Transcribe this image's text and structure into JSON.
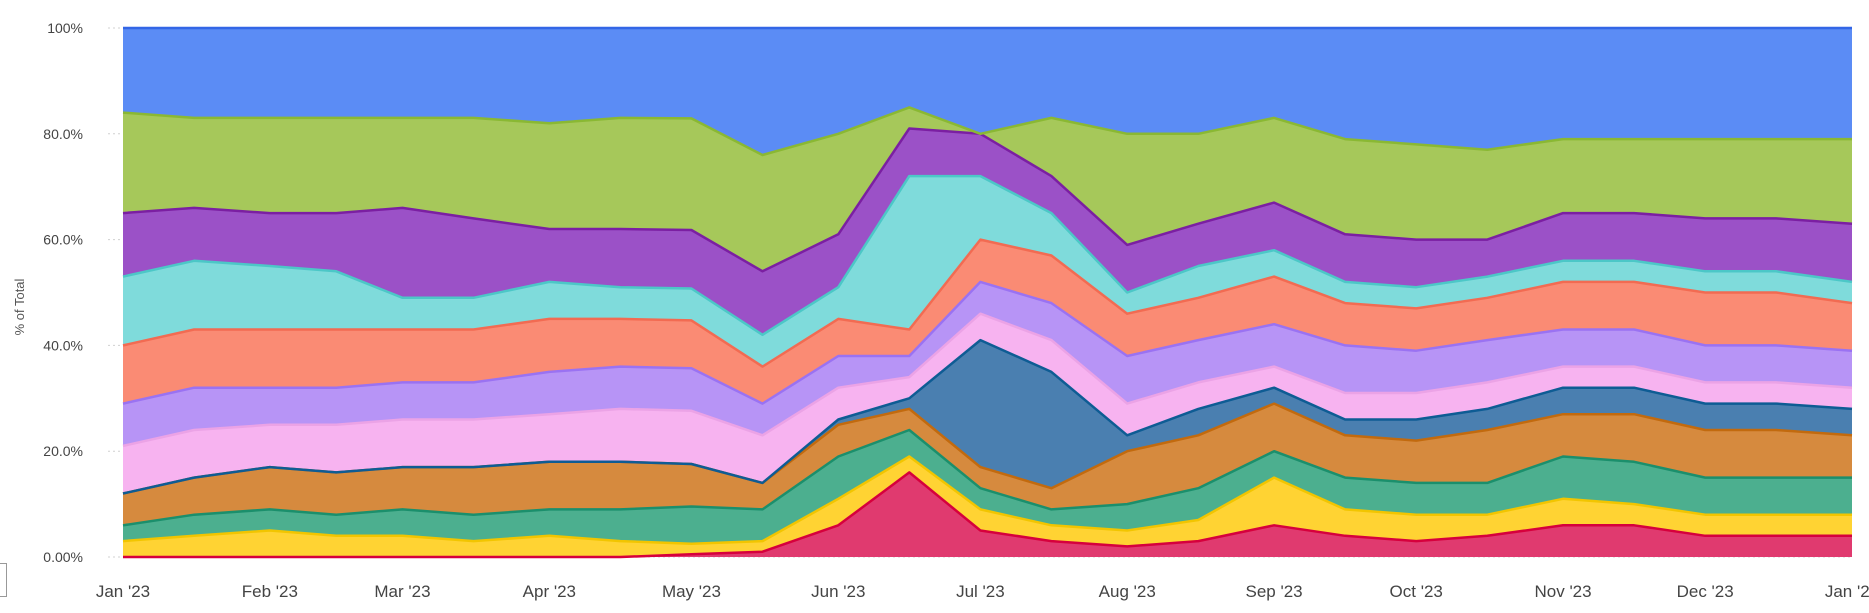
{
  "chart_data": {
    "type": "area",
    "stacked": "percent",
    "title": "",
    "xlabel": "",
    "ylabel": "% of Total",
    "ylim": [
      0,
      100
    ],
    "y_ticks": [
      "0.00%",
      "20.0%",
      "40.0%",
      "60.0%",
      "80.0%",
      "100%"
    ],
    "y_tick_values": [
      0,
      20,
      40,
      60,
      80,
      100
    ],
    "x_ticks": [
      "Jan '23",
      "Feb '23",
      "Mar '23",
      "Apr '23",
      "May '23",
      "Jun '23",
      "Jul '23",
      "Aug '23",
      "Sep '23",
      "Oct '23",
      "Nov '23",
      "Dec '23",
      "Jan '24"
    ],
    "x_tick_dates": [
      "2023-01-01",
      "2023-02-01",
      "2023-03-01",
      "2023-04-01",
      "2023-05-01",
      "2023-06-01",
      "2023-07-01",
      "2023-08-01",
      "2023-09-01",
      "2023-10-01",
      "2023-11-01",
      "2023-12-01",
      "2024-01-01"
    ],
    "x_range": [
      "2023-01-01",
      "2024-01-01"
    ],
    "grid": true,
    "legend": "none",
    "x": [
      "2023-01-01",
      "2023-01-16",
      "2023-02-01",
      "2023-02-15",
      "2023-03-01",
      "2023-03-16",
      "2023-04-01",
      "2023-04-16",
      "2023-05-01",
      "2023-05-16",
      "2023-06-01",
      "2023-06-16",
      "2023-07-01",
      "2023-07-16",
      "2023-08-01",
      "2023-08-16",
      "2023-09-01",
      "2023-09-16",
      "2023-10-01",
      "2023-10-16",
      "2023-11-01",
      "2023-11-16",
      "2023-12-01",
      "2023-12-16",
      "2024-01-01"
    ],
    "series": [
      {
        "color": "#e03a6f",
        "line": "#d6003d",
        "values": [
          0,
          0,
          0,
          0,
          0,
          0,
          0,
          0,
          0.5,
          1,
          6,
          16,
          5,
          3,
          2,
          3,
          6,
          4,
          3,
          4,
          6,
          6,
          4,
          4,
          4
        ]
      },
      {
        "color": "#ffd333",
        "line": "#f2c500",
        "values": [
          3,
          4,
          5,
          4,
          4,
          3,
          4,
          3,
          2,
          2,
          5,
          3,
          4,
          3,
          3,
          4,
          9,
          5,
          5,
          4,
          5,
          4,
          4,
          4,
          4
        ]
      },
      {
        "color": "#4caf8f",
        "line": "#1b8f6c",
        "values": [
          3,
          4,
          4,
          4,
          5,
          5,
          5,
          6,
          7,
          6,
          8,
          5,
          4,
          3,
          5,
          6,
          5,
          6,
          6,
          6,
          8,
          8,
          7,
          7,
          7
        ]
      },
      {
        "color": "#d68a3e",
        "line": "#c26a0e",
        "values": [
          6,
          7,
          8,
          8,
          8,
          9,
          9,
          9,
          8,
          5,
          6,
          4,
          4,
          4,
          10,
          10,
          9,
          8,
          8,
          10,
          8,
          9,
          9,
          9,
          8
        ]
      },
      {
        "color": "#4a7fb0",
        "line": "#0e5c94",
        "values": [
          0,
          0,
          0,
          0,
          0,
          0,
          0,
          0,
          0,
          0,
          1,
          2,
          24,
          22,
          3,
          5,
          3,
          3,
          4,
          4,
          5,
          5,
          5,
          5,
          5
        ]
      },
      {
        "color": "#f7b3f0",
        "line": "#eba3e6",
        "values": [
          9,
          9,
          8,
          9,
          9,
          9,
          9,
          10,
          10,
          9,
          6,
          4,
          5,
          6,
          6,
          5,
          4,
          5,
          5,
          5,
          4,
          4,
          4,
          4,
          4
        ]
      },
      {
        "color": "#b794f6",
        "line": "#9a72f2",
        "values": [
          8,
          8,
          7,
          7,
          7,
          7,
          8,
          8,
          8,
          6,
          6,
          4,
          6,
          7,
          9,
          8,
          8,
          9,
          8,
          8,
          7,
          7,
          7,
          7,
          7
        ]
      },
      {
        "color": "#fa8b74",
        "line": "#f26b52",
        "values": [
          11,
          11,
          11,
          11,
          10,
          10,
          10,
          9,
          9,
          7,
          7,
          5,
          8,
          9,
          8,
          8,
          9,
          8,
          8,
          8,
          9,
          9,
          10,
          10,
          9
        ]
      },
      {
        "color": "#7fdbdb",
        "line": "#4cc7c7",
        "values": [
          13,
          13,
          12,
          11,
          6,
          6,
          7,
          6,
          6,
          6,
          6,
          29,
          12,
          8,
          4,
          6,
          5,
          4,
          4,
          4,
          4,
          4,
          4,
          4,
          4
        ]
      },
      {
        "color": "#9b51c7",
        "line": "#7b1fa2",
        "values": [
          12,
          10,
          10,
          11,
          17,
          15,
          10,
          11,
          11,
          12,
          10,
          9,
          8,
          7,
          9,
          8,
          9,
          9,
          9,
          7,
          9,
          9,
          10,
          10,
          11
        ]
      },
      {
        "color": "#a6c85a",
        "line": "#8ab833",
        "values": [
          19,
          17,
          18,
          18,
          17,
          19,
          20,
          21,
          21,
          22,
          19,
          4,
          0,
          11,
          21,
          17,
          16,
          18,
          18,
          17,
          14,
          14,
          15,
          15,
          16
        ]
      },
      {
        "color": "#5b8cf5",
        "line": "#3366e6",
        "values": [
          16,
          17,
          17,
          17,
          17,
          17,
          18,
          17,
          17,
          24,
          20,
          15,
          20,
          17,
          20,
          20,
          17,
          21,
          22,
          23,
          21,
          21,
          21,
          21,
          21
        ]
      }
    ]
  }
}
